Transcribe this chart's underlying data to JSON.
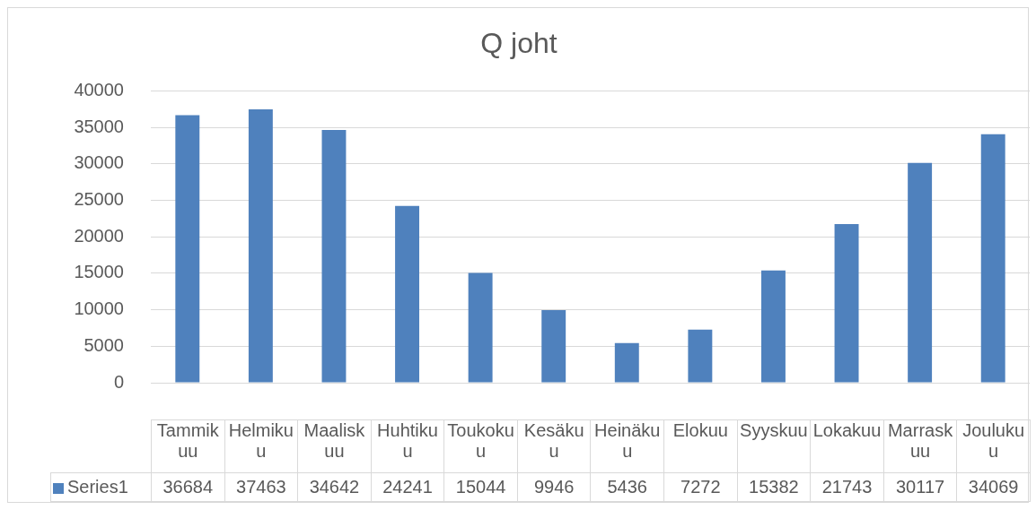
{
  "chart_data": {
    "type": "bar",
    "title": "Q joht",
    "categories": [
      "Tammikuu",
      "Helmikuu",
      "Maaliskuu",
      "Huhtikuu",
      "Toukokuu",
      "Kesäkuu",
      "Heinäkuu",
      "Elokuu",
      "Syyskuu",
      "Lokakuu",
      "Marraskuu",
      "Joulukuu"
    ],
    "series": [
      {
        "name": "Series1",
        "color": "#4f81bd",
        "values": [
          36684,
          37463,
          34642,
          24241,
          15044,
          9946,
          5436,
          7272,
          15382,
          21743,
          30117,
          34069
        ]
      }
    ],
    "ylim": [
      0,
      40000
    ],
    "yticks": [
      0,
      5000,
      10000,
      15000,
      20000,
      25000,
      30000,
      35000,
      40000
    ],
    "grid": "y",
    "legend": "bottom",
    "data_labels": true
  }
}
